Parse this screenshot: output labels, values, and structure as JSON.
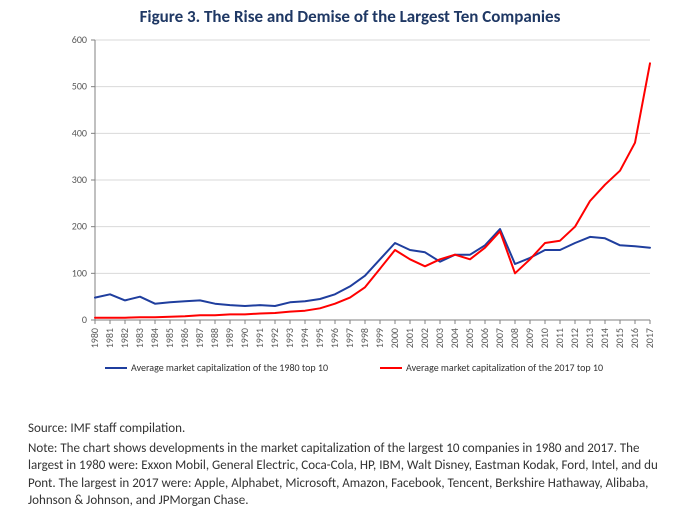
{
  "chart": {
    "type": "line",
    "title": "Figure 3. The Rise and Demise of the Largest Ten Companies",
    "title_color": "#1f3864",
    "title_fontsize": 17,
    "title_fontweight": "700",
    "background_color": "#ffffff",
    "axis_line_color": "#808080",
    "gridline_color": "#d9d9d9",
    "tick_font_color": "#595959",
    "tick_fontsize": 10,
    "xlabel_rotation": -90,
    "ylim": [
      0,
      600
    ],
    "ytick_step": 100,
    "yticks": [
      0,
      100,
      200,
      300,
      400,
      500,
      600
    ],
    "x_categories": [
      "1980",
      "1981",
      "1982",
      "1983",
      "1984",
      "1985",
      "1986",
      "1987",
      "1988",
      "1989",
      "1990",
      "1991",
      "1992",
      "1993",
      "1994",
      "1995",
      "1996",
      "1997",
      "1998",
      "1999",
      "2000",
      "2001",
      "2002",
      "2003",
      "2004",
      "2005",
      "2006",
      "2007",
      "2008",
      "2009",
      "2010",
      "2011",
      "2012",
      "2013",
      "2014",
      "2015",
      "2016",
      "2017"
    ],
    "series": [
      {
        "name": "Average market capitalization of the 1980 top 10",
        "color": "#1f3e9e",
        "line_width": 2,
        "values": [
          48,
          55,
          42,
          50,
          35,
          38,
          40,
          42,
          35,
          32,
          30,
          32,
          30,
          38,
          40,
          45,
          55,
          72,
          95,
          130,
          165,
          150,
          145,
          125,
          140,
          140,
          160,
          195,
          120,
          133,
          150,
          150,
          165,
          178,
          175,
          160,
          158,
          155
        ]
      },
      {
        "name": "Average market capitalization of the 2017 top 10",
        "color": "#ff0000",
        "line_width": 2,
        "values": [
          5,
          5,
          5,
          6,
          6,
          7,
          8,
          10,
          10,
          12,
          12,
          14,
          15,
          18,
          20,
          25,
          35,
          48,
          70,
          110,
          150,
          130,
          115,
          130,
          140,
          130,
          155,
          190,
          100,
          130,
          165,
          170,
          200,
          255,
          290,
          320,
          380,
          550
        ]
      }
    ],
    "legend": {
      "position": "below-axis",
      "fontsize": 10,
      "items": [
        {
          "color": "#1f3e9e",
          "label": "Average market capitalization of the 1980 top 10"
        },
        {
          "color": "#ff0000",
          "label": "Average market capitalization of the 2017 top 10"
        }
      ]
    }
  },
  "footnotes": {
    "source": "Source: IMF staff compilation.",
    "note": "Note: The chart shows developments in the market capitalization of the largest 10 companies in 1980 and 2017. The largest in 1980 were: Exxon Mobil, General Electric, Coca-Cola, HP, IBM, Walt Disney, Eastman Kodak, Ford, Intel, and du Pont. The largest in 2017 were: Apple, Alphabet, Microsoft, Amazon, Facebook, Tencent, Berkshire Hathaway, Alibaba, Johnson & Johnson, and JPMorgan Chase.",
    "fontsize": 13,
    "color": "#333333"
  }
}
